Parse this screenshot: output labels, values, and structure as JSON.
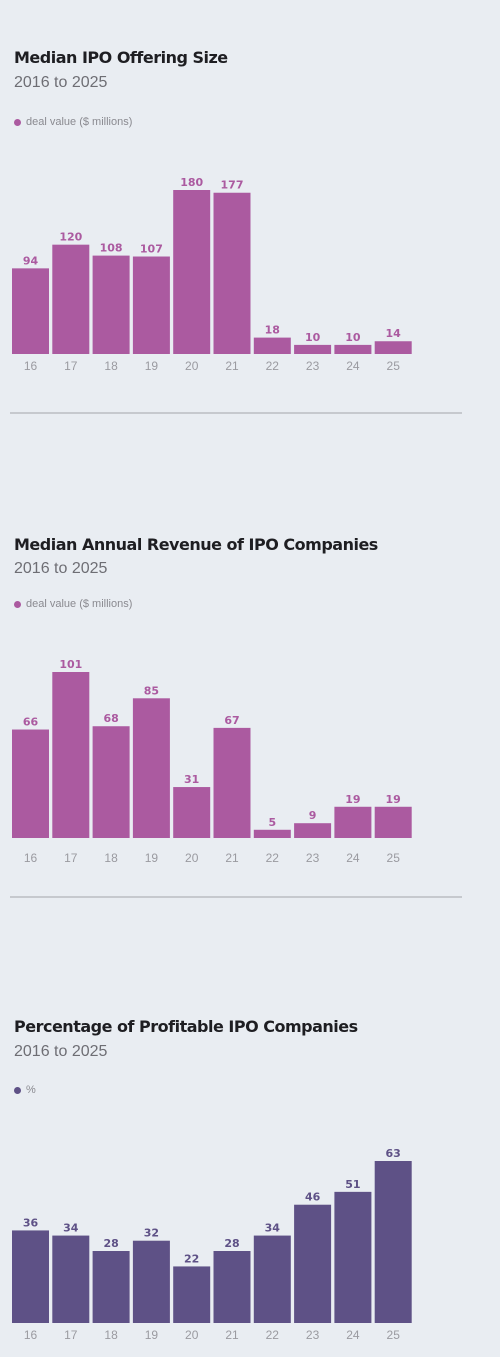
{
  "chart_data": [
    {
      "type": "bar",
      "title": "Median IPO Offering Size",
      "subtitle": "2016 to 2025",
      "legend": "deal value ($ millions)",
      "color": "#ab5aa0",
      "categories": [
        "16",
        "17",
        "18",
        "19",
        "20",
        "21",
        "22",
        "23",
        "24",
        "25"
      ],
      "values": [
        94,
        120,
        108,
        107,
        180,
        177,
        18,
        10,
        10,
        14
      ],
      "ylim": [
        0,
        180
      ],
      "grid": false
    },
    {
      "type": "bar",
      "title": "Median Annual Revenue of IPO Companies",
      "subtitle": "2016 to 2025",
      "legend": "deal value ($ millions)",
      "color": "#ab5aa0",
      "categories": [
        "16",
        "17",
        "18",
        "19",
        "20",
        "21",
        "22",
        "23",
        "24",
        "25"
      ],
      "values": [
        66,
        101,
        68,
        85,
        31,
        67,
        5,
        9,
        19,
        19
      ],
      "ylim": [
        0,
        101
      ],
      "grid": false
    },
    {
      "type": "bar",
      "title": "Percentage of Profitable IPO Companies",
      "subtitle": "2016 to 2025",
      "legend": "%",
      "color": "#5e5186",
      "categories": [
        "16",
        "17",
        "18",
        "19",
        "20",
        "21",
        "22",
        "23",
        "24",
        "25"
      ],
      "values": [
        36,
        34,
        28,
        32,
        22,
        28,
        34,
        46,
        51,
        63
      ],
      "ylim": [
        0,
        63
      ],
      "grid": false
    }
  ]
}
